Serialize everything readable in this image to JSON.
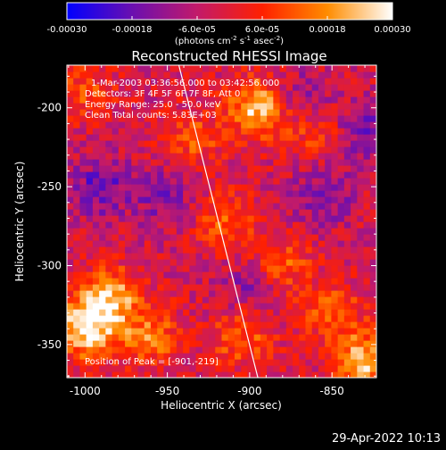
{
  "chart_data": {
    "type": "heatmap",
    "title": "Reconstructed RHESSI Image",
    "xlabel": "Heliocentric X (arcsec)",
    "ylabel": "Heliocentric Y (arcsec)",
    "xlim": [
      -1011,
      -823
    ],
    "ylim": [
      -371,
      -173
    ],
    "x_ticks": [
      -1000,
      -950,
      -900,
      -850
    ],
    "y_ticks": [
      -200,
      -250,
      -300,
      -350
    ],
    "colorbar": {
      "range": [
        -0.0003,
        0.0003
      ],
      "ticks": [
        -0.0003,
        -0.00018,
        -6e-05,
        6e-05,
        0.00018,
        0.0003
      ],
      "tick_labels": [
        "-0.00030",
        "-0.00018",
        "-6.0e-05",
        "6.0e-05",
        "0.00018",
        "0.00030"
      ],
      "units_label": "(photons cm",
      "units_exp1": "-2",
      "units_mid": " s",
      "units_exp2": "-1",
      "units_end": " asec",
      "units_exp3": "-2",
      "units_close": ")",
      "colors": [
        "#0000ff",
        "#6a0fb0",
        "#c21a6a",
        "#ff2000",
        "#ff8c00",
        "#ffffff"
      ]
    },
    "annotations": [
      "1-Mar-2003 03:36:56.000 to 03:42:56.000",
      "Detectors: 3F 4F 5F 6F 7F 8F, Att 0",
      "Energy Range: 25.0 - 50.0 keV",
      "Clean    Total counts: 5.83E+03"
    ],
    "peak_label": "Position of Peak = [-901,-219]",
    "limb_line": {
      "from": [
        -943,
        -173
      ],
      "to": [
        -895,
        -371
      ],
      "color": "#ffffff"
    },
    "hot_regions": [
      {
        "x": -895,
        "y": -200,
        "value": 0.00028
      },
      {
        "x": -1000,
        "y": -340,
        "value": 0.0003
      },
      {
        "x": -985,
        "y": -320,
        "value": 0.00025
      },
      {
        "x": -830,
        "y": -360,
        "value": 0.00026
      },
      {
        "x": -960,
        "y": -345,
        "value": 0.00018
      },
      {
        "x": -915,
        "y": -270,
        "value": 0.00015
      },
      {
        "x": -880,
        "y": -300,
        "value": 0.00014
      },
      {
        "x": -935,
        "y": -220,
        "value": 0.00013
      },
      {
        "x": -1000,
        "y": -190,
        "value": 0.00012
      },
      {
        "x": -860,
        "y": -215,
        "value": 0.00012
      },
      {
        "x": -905,
        "y": -345,
        "value": 0.00016
      },
      {
        "x": -850,
        "y": -330,
        "value": 0.00015
      }
    ],
    "cool_regions": [
      {
        "x": -990,
        "y": -250,
        "value": -0.00015
      },
      {
        "x": -950,
        "y": -255,
        "value": -0.00013
      },
      {
        "x": -830,
        "y": -215,
        "value": -0.00014
      },
      {
        "x": -855,
        "y": -255,
        "value": -0.00012
      },
      {
        "x": -870,
        "y": -195,
        "value": -0.00011
      },
      {
        "x": -900,
        "y": -315,
        "value": -0.0001
      }
    ]
  },
  "footer": {
    "timestamp": "29-Apr-2022 10:13"
  }
}
